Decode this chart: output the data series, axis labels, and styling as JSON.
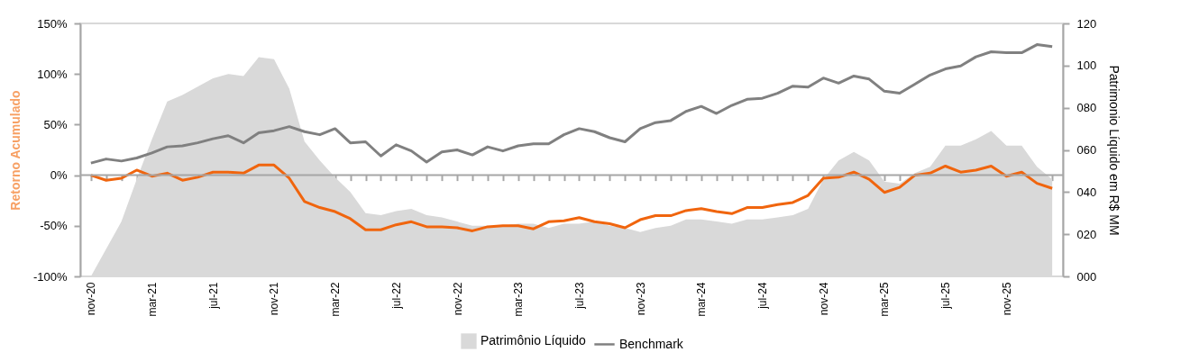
{
  "chart_data": {
    "type": "line",
    "ylabel": "Retorno Acumulado",
    "y2label": "Patrimonio Líquido em R$ MM",
    "legend": "bottom",
    "categories": [
      "nov-20",
      null,
      null,
      null,
      "mar-21",
      null,
      null,
      null,
      "jul-21",
      null,
      null,
      null,
      "nov-21",
      null,
      null,
      null,
      "mar-22",
      null,
      null,
      null,
      "jul-22",
      null,
      null,
      null,
      "nov-22",
      null,
      null,
      null,
      "mar-23",
      null,
      null,
      null,
      "jul-23",
      null,
      null,
      null,
      "nov-23",
      null,
      null,
      null,
      "mar-24",
      null,
      null,
      null,
      "jul-24",
      null,
      null,
      null,
      "nov-24",
      null,
      null,
      null,
      "mar-25",
      null,
      null,
      null,
      "jul-25",
      null,
      null,
      null,
      "nov-25",
      null,
      null,
      null
    ],
    "ylim": [
      -100,
      150
    ],
    "yticks": [
      {
        "value": -100,
        "label": "-100%"
      },
      {
        "value": -50,
        "label": "-50%"
      },
      {
        "value": 0,
        "label": "0%"
      },
      {
        "value": 50,
        "label": "50%"
      },
      {
        "value": 100,
        "label": "100%"
      },
      {
        "value": 150,
        "label": "150%"
      }
    ],
    "y2lim": [
      0,
      120
    ],
    "y2ticks": [
      {
        "value": 0,
        "label": "000"
      },
      {
        "value": 20,
        "label": "020"
      },
      {
        "value": 40,
        "label": "040"
      },
      {
        "value": 60,
        "label": "060"
      },
      {
        "value": 80,
        "label": "080"
      },
      {
        "value": 100,
        "label": "100"
      },
      {
        "value": 120,
        "label": "120"
      }
    ],
    "ref_lines": [
      {
        "axis": "y",
        "value": 0,
        "color": "#a6a6a6"
      }
    ],
    "series": [
      {
        "name": "Patrimônio Líquido",
        "type": "area",
        "axis": "y2",
        "color": "#d9d9d9",
        "values": [
          0,
          13,
          26,
          46,
          65,
          83,
          86,
          90,
          94,
          96,
          95,
          104,
          103,
          89,
          64,
          55,
          47,
          40,
          30,
          29,
          31,
          32,
          29,
          28,
          26,
          24,
          24,
          24,
          25,
          25,
          23,
          25,
          25,
          26,
          24,
          23,
          21,
          23,
          24,
          27,
          27,
          26,
          25,
          27,
          27,
          28,
          29,
          32,
          46,
          55,
          59,
          55,
          45,
          44,
          49,
          52,
          62,
          62,
          65,
          69,
          62,
          62,
          52,
          46
        ]
      },
      {
        "name": "Benchmark",
        "axis": "y",
        "color": "#808080",
        "values": [
          12,
          16,
          14,
          17,
          22,
          28,
          29,
          32,
          36,
          39,
          32,
          42,
          44,
          48,
          43,
          40,
          46,
          32,
          33,
          19,
          30,
          24,
          13,
          23,
          25,
          20,
          28,
          24,
          29,
          31,
          31,
          40,
          46,
          43,
          37,
          33,
          46,
          52,
          54,
          63,
          68,
          61,
          69,
          75,
          76,
          81,
          88,
          87,
          96,
          91,
          98,
          95,
          83,
          81,
          90,
          99,
          105,
          108,
          117,
          122,
          121,
          121,
          129,
          127
        ]
      },
      {
        "axis": "y",
        "color": "#f0650e",
        "values": [
          0,
          -5,
          -3,
          5,
          -1,
          2,
          -5,
          -2,
          3,
          3,
          2,
          10,
          10,
          -3,
          -26,
          -32,
          -36,
          -43,
          -54,
          -54,
          -49,
          -46,
          -51,
          -51,
          -52,
          -55,
          -51,
          -50,
          -50,
          -53,
          -46,
          -45,
          -42,
          -46,
          -48,
          -52,
          -44,
          -40,
          -40,
          -35,
          -33,
          -36,
          -38,
          -32,
          -32,
          -29,
          -27,
          -20,
          -3,
          -2,
          3,
          -4,
          -17,
          -12,
          0,
          2,
          9,
          3,
          5,
          9,
          -1,
          3,
          -8,
          -13
        ]
      }
    ]
  }
}
